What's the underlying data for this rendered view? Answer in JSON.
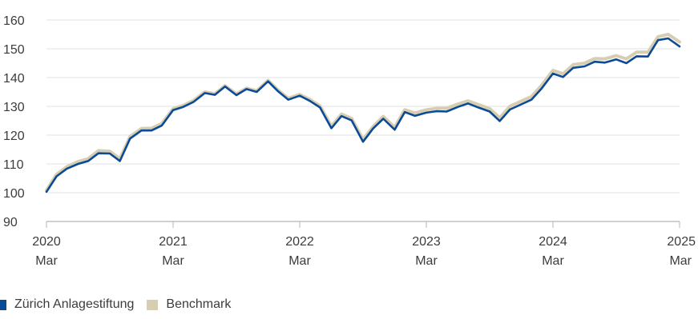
{
  "chart_data": {
    "type": "line",
    "title": "",
    "xlabel": "",
    "ylabel": "",
    "ylim": [
      90,
      160
    ],
    "yticks": [
      90,
      100,
      110,
      120,
      130,
      140,
      150,
      160
    ],
    "xlim": [
      2020.17,
      2025.17
    ],
    "xticks": [
      {
        "x": 2020.17,
        "year": "2020",
        "month": "Mar"
      },
      {
        "x": 2021.17,
        "year": "2021",
        "month": "Mar"
      },
      {
        "x": 2022.17,
        "year": "2022",
        "month": "Mar"
      },
      {
        "x": 2023.17,
        "year": "2023",
        "month": "Mar"
      },
      {
        "x": 2024.17,
        "year": "2024",
        "month": "Mar"
      },
      {
        "x": 2025.17,
        "year": "2025",
        "month": "Mar"
      }
    ],
    "grid": true,
    "legend_position": "bottom-left",
    "x": [
      2020.17,
      2020.25,
      2020.33,
      2020.42,
      2020.5,
      2020.58,
      2020.67,
      2020.75,
      2020.83,
      2020.92,
      2021.0,
      2021.08,
      2021.17,
      2021.25,
      2021.33,
      2021.42,
      2021.5,
      2021.58,
      2021.67,
      2021.75,
      2021.83,
      2021.92,
      2022.0,
      2022.08,
      2022.17,
      2022.25,
      2022.33,
      2022.42,
      2022.5,
      2022.58,
      2022.67,
      2022.75,
      2022.83,
      2022.92,
      2023.0,
      2023.08,
      2023.17,
      2023.25,
      2023.33,
      2023.42,
      2023.5,
      2023.58,
      2023.67,
      2023.75,
      2023.83,
      2023.92,
      2024.0,
      2024.08,
      2024.17,
      2024.25,
      2024.33,
      2024.42,
      2024.5,
      2024.58,
      2024.67,
      2024.75,
      2024.83,
      2024.92,
      2025.0,
      2025.08,
      2025.17
    ],
    "series": [
      {
        "name": "Zürich Anlagestiftung",
        "color": "#0a4a96",
        "values": [
          100.3,
          105.7,
          108.3,
          110.0,
          111.0,
          113.7,
          113.6,
          111.0,
          118.8,
          121.6,
          121.6,
          123.3,
          128.7,
          129.8,
          131.5,
          134.6,
          134.0,
          136.9,
          133.9,
          136.0,
          135.0,
          138.7,
          135.2,
          132.3,
          133.7,
          131.9,
          129.6,
          122.4,
          126.6,
          125.1,
          117.7,
          122.3,
          125.7,
          121.9,
          128.0,
          126.7,
          127.8,
          128.3,
          128.2,
          129.8,
          131.0,
          129.6,
          128.2,
          124.9,
          128.9,
          130.7,
          132.3,
          136.2,
          141.4,
          140.2,
          143.4,
          143.9,
          145.5,
          145.2,
          146.3,
          145.0,
          147.4,
          147.3,
          153.0,
          153.6,
          150.8
        ]
      },
      {
        "name": "Benchmark",
        "color": "#d7ceb1",
        "values": [
          100.8,
          106.4,
          109.0,
          110.8,
          111.8,
          114.6,
          114.4,
          111.8,
          119.5,
          122.3,
          122.4,
          124.0,
          129.2,
          130.3,
          132.0,
          135.0,
          134.4,
          137.2,
          134.3,
          136.3,
          135.4,
          139.0,
          135.6,
          132.8,
          134.1,
          132.4,
          130.2,
          123.1,
          127.3,
          125.8,
          118.5,
          123.0,
          126.5,
          122.7,
          128.8,
          127.7,
          128.8,
          129.3,
          129.3,
          130.8,
          131.9,
          130.6,
          129.2,
          126.0,
          130.0,
          131.8,
          133.4,
          137.3,
          142.5,
          141.3,
          144.5,
          145.0,
          146.6,
          146.5,
          147.6,
          146.5,
          148.8,
          148.8,
          154.2,
          155.0,
          152.4
        ]
      }
    ]
  }
}
